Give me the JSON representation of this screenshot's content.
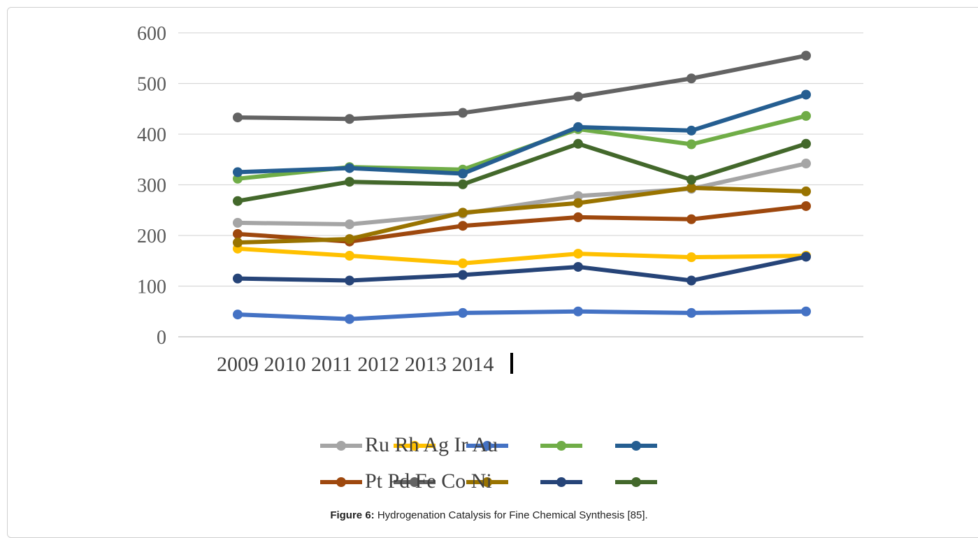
{
  "caption": {
    "label": "Figure 6:",
    "text": " Hydrogenation Catalysis for Fine Chemical Synthesis [85]."
  },
  "legend_text": {
    "row1": "Ru Rh Ag Ir Au",
    "row2": "Pt Pd Fe Co Ni"
  },
  "chart_data": {
    "type": "line",
    "title": "",
    "xlabel": "",
    "ylabel": "",
    "ylim": [
      0,
      600
    ],
    "yticks": [
      0,
      100,
      200,
      300,
      400,
      500,
      600
    ],
    "grid": true,
    "legend_position": "bottom",
    "x_tick_text": "2009 2010 2011 2012 2013 2014",
    "categories": [
      "2009",
      "2010",
      "2011",
      "2012",
      "2013",
      "2014"
    ],
    "series": [
      {
        "name": "Ru",
        "color": "#a5a5a5",
        "values": [
          225,
          222,
          243,
          278,
          292,
          342
        ]
      },
      {
        "name": "Rh",
        "color": "#ffc000",
        "values": [
          174,
          160,
          145,
          164,
          157,
          160
        ]
      },
      {
        "name": "Ag",
        "color": "#4472c4",
        "values": [
          44,
          35,
          47,
          50,
          47,
          50
        ]
      },
      {
        "name": "Ir",
        "color": "#70ad47",
        "values": [
          312,
          335,
          330,
          410,
          380,
          436
        ]
      },
      {
        "name": "Au",
        "color": "#255e91",
        "values": [
          325,
          333,
          322,
          414,
          407,
          478
        ]
      },
      {
        "name": "Pt",
        "color": "#9e480e",
        "values": [
          203,
          188,
          219,
          236,
          232,
          258
        ]
      },
      {
        "name": "Pd",
        "color": "#636363",
        "values": [
          433,
          430,
          442,
          474,
          510,
          555
        ]
      },
      {
        "name": "Fe",
        "color": "#997300",
        "values": [
          186,
          193,
          245,
          264,
          294,
          287
        ]
      },
      {
        "name": "Co",
        "color": "#264478",
        "values": [
          115,
          111,
          122,
          138,
          111,
          158
        ]
      },
      {
        "name": "Ni",
        "color": "#43682b",
        "values": [
          268,
          306,
          301,
          381,
          310,
          381
        ]
      }
    ]
  }
}
